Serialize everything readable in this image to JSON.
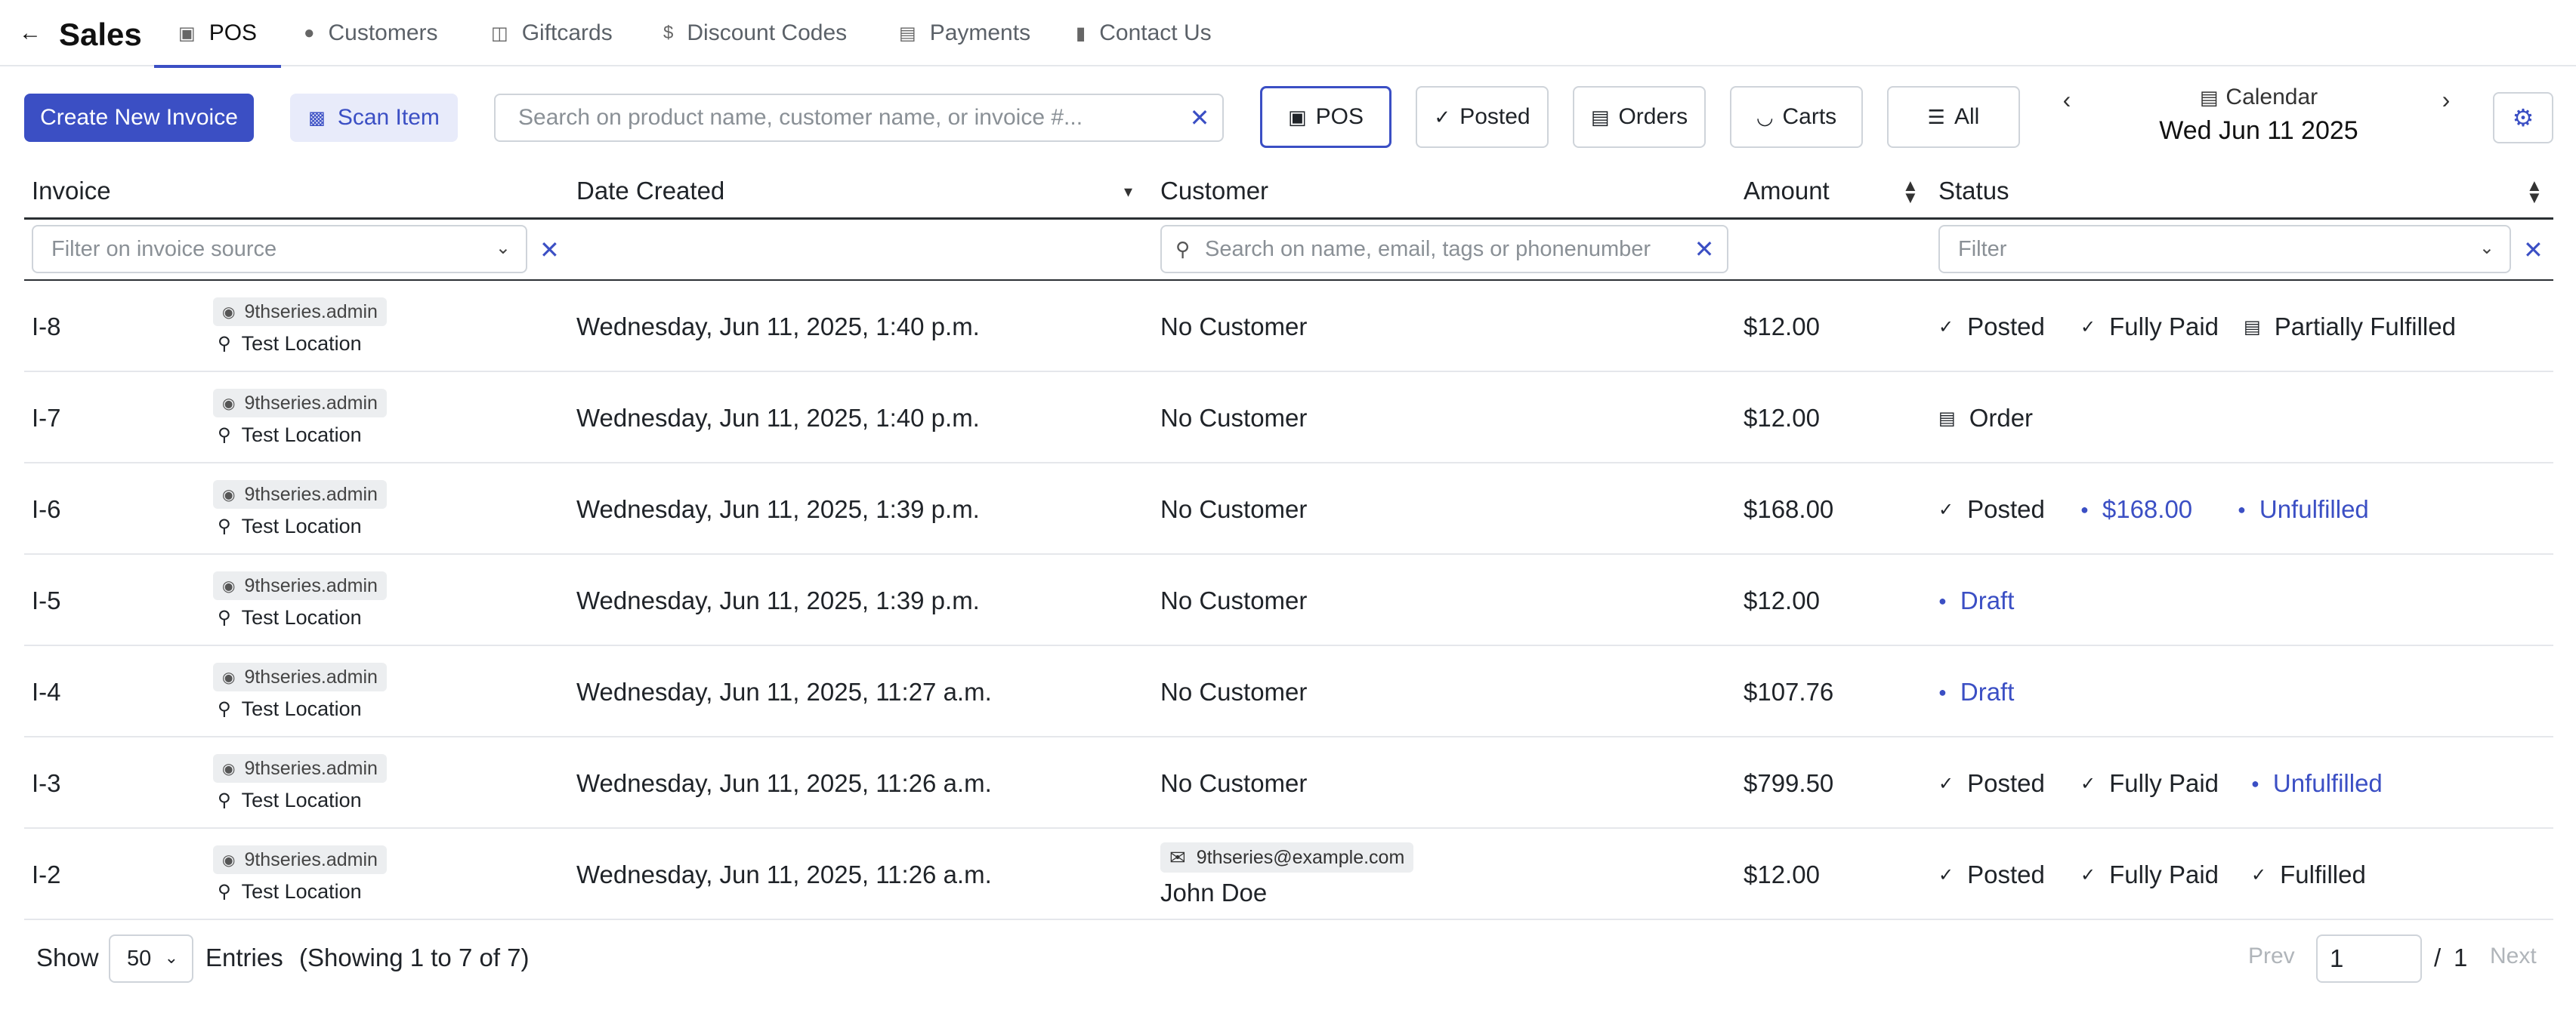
{
  "nav": {
    "brand": "Sales",
    "tabs": [
      {
        "label": "POS",
        "icon": "pos-icon",
        "active": true
      },
      {
        "label": "Customers",
        "icon": "person-icon"
      },
      {
        "label": "Giftcards",
        "icon": "giftcard-icon"
      },
      {
        "label": "Discount Codes",
        "icon": "dollar-icon"
      },
      {
        "label": "Payments",
        "icon": "payments-icon"
      },
      {
        "label": "Contact Us",
        "icon": "document-icon"
      }
    ]
  },
  "toolbar": {
    "create_label": "Create New Invoice",
    "scan_label": "Scan Item",
    "search_placeholder": "Search on product name, customer name, or invoice #...",
    "filters": [
      {
        "label": "POS",
        "icon": "pos-icon",
        "active": true
      },
      {
        "label": "Posted",
        "icon": "check-icon"
      },
      {
        "label": "Orders",
        "icon": "calendar-icon"
      },
      {
        "label": "Carts",
        "icon": "basket-icon"
      },
      {
        "label": "All",
        "icon": "list-icon"
      }
    ],
    "calendar_label": "Calendar",
    "calendar_date": "Wed Jun 11 2025"
  },
  "table": {
    "columns": [
      "Invoice",
      "Date Created",
      "Customer",
      "Amount",
      "Status"
    ],
    "filter_source_placeholder": "Filter on invoice source",
    "filter_customer_placeholder": "Search on name, email, tags or phonenumber",
    "filter_status_placeholder": "Filter",
    "rows": [
      {
        "invoice": "I-8",
        "user": "9thseries.admin",
        "location": "Test Location",
        "date": "Wednesday, Jun 11, 2025, 1:40 p.m.",
        "customer": "No Customer",
        "amount": "$12.00",
        "statuses": [
          {
            "label": "Posted",
            "kind": "check"
          },
          {
            "label": "Fully Paid",
            "kind": "check"
          },
          {
            "label": "Partially Fulfilled",
            "kind": "calendar"
          }
        ]
      },
      {
        "invoice": "I-7",
        "user": "9thseries.admin",
        "location": "Test Location",
        "date": "Wednesday, Jun 11, 2025, 1:40 p.m.",
        "customer": "No Customer",
        "amount": "$12.00",
        "statuses": [
          {
            "label": "Order",
            "kind": "calendar"
          }
        ]
      },
      {
        "invoice": "I-6",
        "user": "9thseries.admin",
        "location": "Test Location",
        "date": "Wednesday, Jun 11, 2025, 1:39 p.m.",
        "customer": "No Customer",
        "amount": "$168.00",
        "statuses": [
          {
            "label": "Posted",
            "kind": "check"
          },
          {
            "label": "$168.00",
            "kind": "dot"
          },
          {
            "label": "Unfulfilled",
            "kind": "dot"
          }
        ]
      },
      {
        "invoice": "I-5",
        "user": "9thseries.admin",
        "location": "Test Location",
        "date": "Wednesday, Jun 11, 2025, 1:39 p.m.",
        "customer": "No Customer",
        "amount": "$12.00",
        "statuses": [
          {
            "label": "Draft",
            "kind": "dot"
          }
        ]
      },
      {
        "invoice": "I-4",
        "user": "9thseries.admin",
        "location": "Test Location",
        "date": "Wednesday, Jun 11, 2025, 11:27 a.m.",
        "customer": "No Customer",
        "amount": "$107.76",
        "statuses": [
          {
            "label": "Draft",
            "kind": "dot"
          }
        ]
      },
      {
        "invoice": "I-3",
        "user": "9thseries.admin",
        "location": "Test Location",
        "date": "Wednesday, Jun 11, 2025, 11:26 a.m.",
        "customer": "No Customer",
        "amount": "$799.50",
        "statuses": [
          {
            "label": "Posted",
            "kind": "check"
          },
          {
            "label": "Fully Paid",
            "kind": "check"
          },
          {
            "label": "Unfulfilled",
            "kind": "dot"
          }
        ]
      },
      {
        "invoice": "I-2",
        "user": "9thseries.admin",
        "location": "Test Location",
        "date": "Wednesday, Jun 11, 2025, 11:26 a.m.",
        "customer_email": "9thseries@example.com",
        "customer": "John Doe",
        "amount": "$12.00",
        "statuses": [
          {
            "label": "Posted",
            "kind": "check"
          },
          {
            "label": "Fully Paid",
            "kind": "check"
          },
          {
            "label": "Fulfilled",
            "kind": "check"
          }
        ]
      }
    ]
  },
  "footer": {
    "show_label": "Show",
    "page_size": "50",
    "entries_label": "Entries",
    "showing_text": "(Showing 1 to 7 of 7)",
    "prev_label": "Prev",
    "page_value": "1",
    "page_sep": "/",
    "page_total": "1",
    "next_label": "Next"
  },
  "colors": {
    "accent": "#3b4fc4",
    "accent_soft": "#e8ebfa",
    "border": "#cfd4da"
  }
}
